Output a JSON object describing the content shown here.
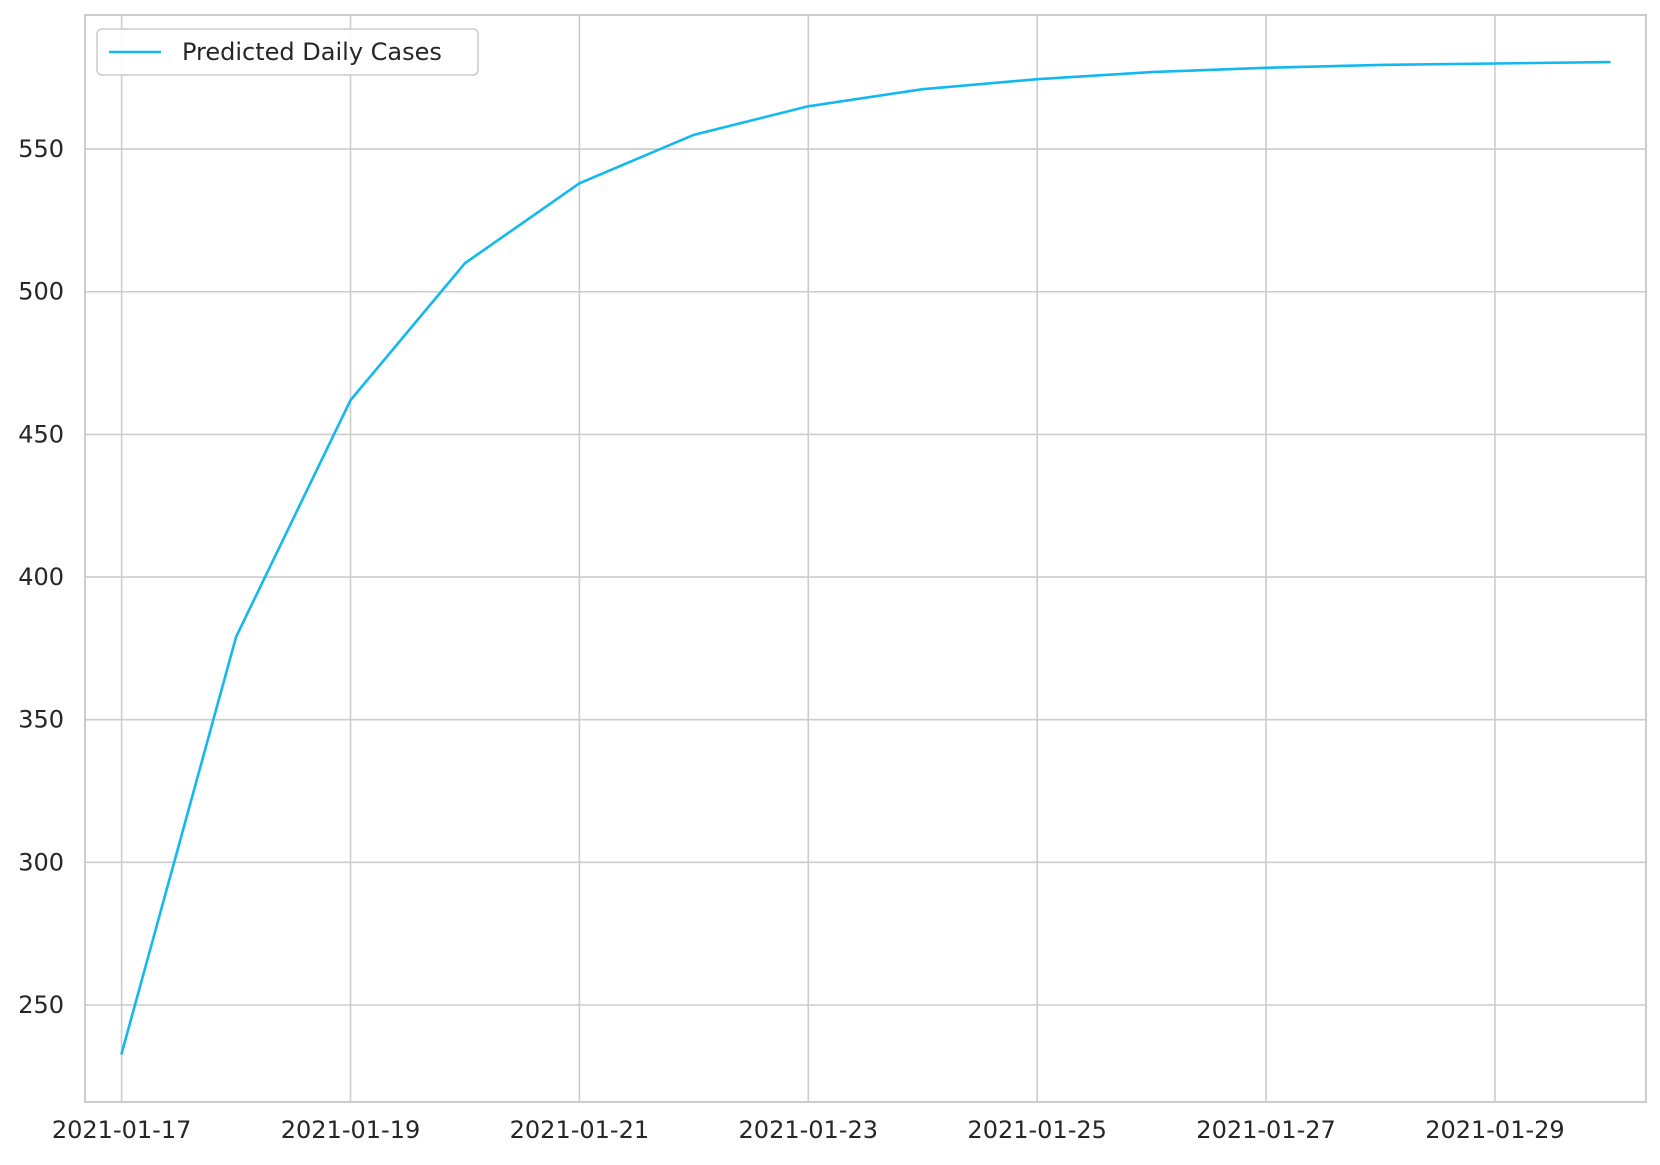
{
  "chart_data": {
    "type": "line",
    "title": "",
    "xlabel": "",
    "ylabel": "",
    "x_ticks": [
      "2021-01-17",
      "2021-01-19",
      "2021-01-21",
      "2021-01-23",
      "2021-01-25",
      "2021-01-27",
      "2021-01-29"
    ],
    "y_ticks": [
      250,
      300,
      350,
      400,
      450,
      500,
      550
    ],
    "xlim": [
      "2021-01-16.68",
      "2021-01-30.32"
    ],
    "ylim": [
      216,
      597
    ],
    "grid": true,
    "legend_position": "top-left",
    "colors": {
      "line": "#12b8f0",
      "grid": "#cccccc",
      "frame": "#cccccc",
      "text": "#262626"
    },
    "series": [
      {
        "name": "Predicted Daily Cases",
        "x": [
          "2021-01-17",
          "2021-01-18",
          "2021-01-19",
          "2021-01-20",
          "2021-01-21",
          "2021-01-22",
          "2021-01-23",
          "2021-01-24",
          "2021-01-25",
          "2021-01-26",
          "2021-01-27",
          "2021-01-28",
          "2021-01-29",
          "2021-01-30"
        ],
        "values": [
          233,
          379,
          462,
          510,
          538,
          555,
          565,
          571,
          574.5,
          577,
          578.5,
          579.5,
          580,
          580.5
        ]
      }
    ]
  }
}
